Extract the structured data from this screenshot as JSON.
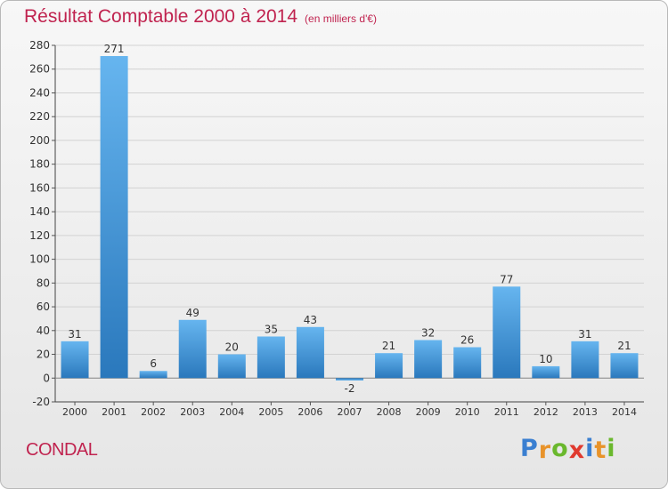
{
  "title": "Résultat Comptable 2000 à 2014",
  "subtitle": "(en milliers d'€)",
  "commune": "CONDAL",
  "logo": {
    "text": "Proxiti",
    "letters": [
      {
        "ch": "P",
        "color": "#3a7fd1"
      },
      {
        "ch": "r",
        "color": "#e8932a"
      },
      {
        "ch": "o",
        "color": "#6ab82d"
      },
      {
        "ch": "x",
        "color": "#e03a2f"
      },
      {
        "ch": "i",
        "color": "#3a7fd1"
      },
      {
        "ch": "t",
        "color": "#e8932a"
      },
      {
        "ch": "i",
        "color": "#6ab82d"
      }
    ]
  },
  "chart_data": {
    "type": "bar",
    "categories": [
      "2000",
      "2001",
      "2002",
      "2003",
      "2004",
      "2005",
      "2006",
      "2007",
      "2008",
      "2009",
      "2010",
      "2011",
      "2012",
      "2013",
      "2014"
    ],
    "values": [
      31,
      271,
      6,
      49,
      20,
      35,
      43,
      -2,
      21,
      32,
      26,
      77,
      10,
      31,
      21
    ],
    "data_labels": [
      "31",
      "271",
      "6",
      "49",
      "20",
      "35",
      "43",
      "-2",
      "21",
      "32",
      "26",
      "77",
      "10",
      "31",
      "21"
    ],
    "yticks": [
      "-20",
      "0",
      "20",
      "40",
      "60",
      "80",
      "100",
      "120",
      "140",
      "160",
      "180",
      "200",
      "220",
      "240",
      "260",
      "280"
    ],
    "ylim": [
      -20,
      280
    ],
    "grid": true,
    "bar_color": "#3f95d6",
    "title_color": "#c0234f"
  }
}
